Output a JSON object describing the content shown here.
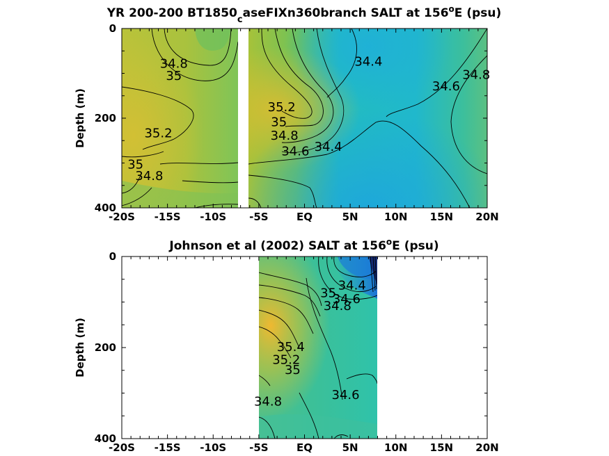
{
  "chart_data": [
    {
      "type": "heatmap",
      "title_parts": [
        "YR 200-200 BT1850",
        "c",
        "aseFIXn360branch SALT at 156",
        "o",
        "E (psu)"
      ],
      "ylabel": "Depth (m)",
      "xlim": [
        -20,
        20
      ],
      "ylim": [
        0,
        400
      ],
      "y_reversed": true,
      "x_ticks": [
        -20,
        -15,
        -10,
        -5,
        0,
        5,
        10,
        15,
        20
      ],
      "x_tick_labels": [
        "-20S",
        "-15S",
        "-10S",
        "-5S",
        "EQ",
        "5N",
        "10N",
        "15N",
        "20N"
      ],
      "y_ticks": [
        0,
        200,
        400
      ],
      "y_tick_labels": [
        "0",
        "200",
        "400"
      ],
      "data_gap_lat": [
        -7.2,
        -6.0
      ],
      "contour_levels": [
        34.4,
        34.6,
        34.8,
        35,
        35.2
      ],
      "contour_labels": [
        {
          "text": "34.8",
          "lat": -14.3,
          "depth": 80
        },
        {
          "text": "35",
          "lat": -14.3,
          "depth": 107
        },
        {
          "text": "35.2",
          "lat": -16.0,
          "depth": 235
        },
        {
          "text": "35",
          "lat": -18.5,
          "depth": 305
        },
        {
          "text": "34.8",
          "lat": -17.0,
          "depth": 330
        },
        {
          "text": "35.2",
          "lat": -2.5,
          "depth": 177
        },
        {
          "text": "35",
          "lat": -2.8,
          "depth": 210
        },
        {
          "text": "34.8",
          "lat": -2.2,
          "depth": 240
        },
        {
          "text": "34.6",
          "lat": -1.0,
          "depth": 275
        },
        {
          "text": "34.4",
          "lat": 2.6,
          "depth": 265
        },
        {
          "text": "34.4",
          "lat": 7.0,
          "depth": 75
        },
        {
          "text": "34.6",
          "lat": 15.5,
          "depth": 130
        },
        {
          "text": "34.8",
          "lat": 18.8,
          "depth": 105
        }
      ]
    },
    {
      "type": "heatmap",
      "title_parts": [
        "Johnson et al (2002) SALT at 156",
        "o",
        "E (psu)"
      ],
      "ylabel": "Depth (m)",
      "xlim": [
        -20,
        20
      ],
      "ylim": [
        0,
        400
      ],
      "y_reversed": true,
      "x_ticks": [
        -20,
        -15,
        -10,
        -5,
        0,
        5,
        10,
        15,
        20
      ],
      "x_tick_labels": [
        "-20S",
        "-15S",
        "-10S",
        "-5S",
        "EQ",
        "5N",
        "10N",
        "15N",
        "20N"
      ],
      "y_ticks": [
        0,
        200,
        400
      ],
      "y_tick_labels": [
        "0",
        "200",
        "400"
      ],
      "data_lat_range": [
        -5,
        8
      ],
      "contour_levels": [
        34.4,
        34.6,
        34.8,
        35,
        35.2,
        35.4
      ],
      "contour_labels": [
        {
          "text": "34.4",
          "lat": 5.2,
          "depth": 65
        },
        {
          "text": "35",
          "lat": 2.6,
          "depth": 82
        },
        {
          "text": "34.6",
          "lat": 4.6,
          "depth": 95
        },
        {
          "text": "34.8",
          "lat": 3.6,
          "depth": 110
        },
        {
          "text": "35.4",
          "lat": -1.5,
          "depth": 200
        },
        {
          "text": "35.2",
          "lat": -2.0,
          "depth": 228
        },
        {
          "text": "35",
          "lat": -1.3,
          "depth": 250
        },
        {
          "text": "34.6",
          "lat": 4.5,
          "depth": 305
        },
        {
          "text": "34.8",
          "lat": -4.0,
          "depth": 320
        }
      ]
    }
  ],
  "colors": {
    "low": "#1f6fe0",
    "mid_low": "#19b5d8",
    "mid": "#2ec4a0",
    "mid_high": "#8cc83a",
    "high": "#f5b82e"
  }
}
